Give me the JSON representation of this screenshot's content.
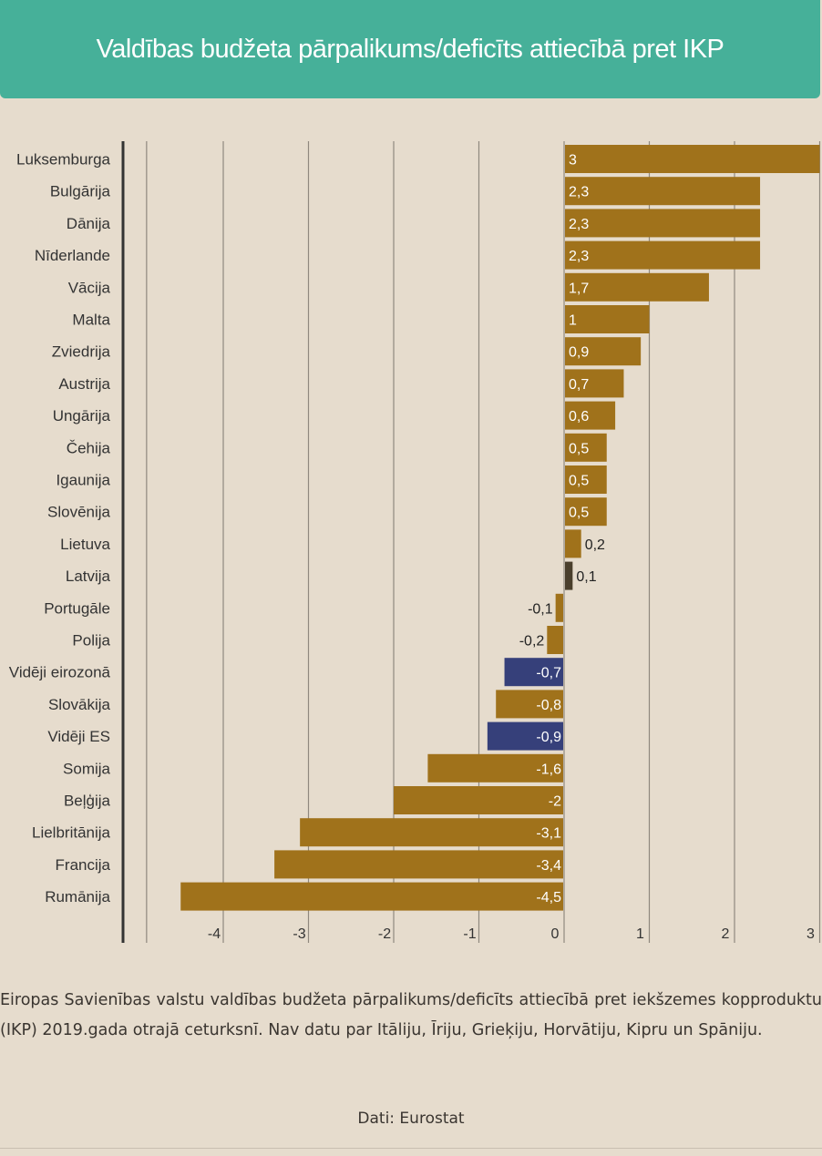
{
  "header": {
    "title": "Valdības budžeta pārpalikums/deficīts attiecībā pret IKP"
  },
  "chart_data": {
    "type": "bar",
    "orientation": "horizontal",
    "title": "Valdības budžeta pārpalikums/deficīts attiecībā pret IKP",
    "categories": [
      "Luksemburga",
      "Bulgārija",
      "Dānija",
      "Nīderlande",
      "Vācija",
      "Malta",
      "Zviedrija",
      "Austrija",
      "Ungārija",
      "Čehija",
      "Igaunija",
      "Slovēnija",
      "Lietuva",
      "Latvija",
      "Portugāle",
      "Polija",
      "Vidēji eirozonā",
      "Slovākija",
      "Vidēji ES",
      "Somija",
      "Beļģija",
      "Lielbritānija",
      "Francija",
      "Rumānija"
    ],
    "values": [
      3,
      2.3,
      2.3,
      2.3,
      1.7,
      1,
      0.9,
      0.7,
      0.6,
      0.5,
      0.5,
      0.5,
      0.2,
      0.1,
      -0.1,
      -0.2,
      -0.7,
      -0.8,
      -0.9,
      -1.6,
      -2,
      -3.1,
      -3.4,
      -4.5
    ],
    "value_labels": [
      "3",
      "2,3",
      "2,3",
      "2,3",
      "1,7",
      "1",
      "0,9",
      "0,7",
      "0,6",
      "0,5",
      "0,5",
      "0,5",
      "0,2",
      "0,1",
      "-0,1",
      "-0,2",
      "-0,7",
      "-0,8",
      "-0,9",
      "-1,6",
      "-2",
      "-3,1",
      "-3,4",
      "-4,5"
    ],
    "xlim": [
      -5,
      3
    ],
    "x_ticks": [
      -4,
      -3,
      -2,
      -1,
      0,
      1,
      2,
      3
    ],
    "grid": true,
    "colors": {
      "default": "#a0721b",
      "average": "#36407a",
      "latvia": "#4a3f2c"
    },
    "highlight": {
      "Vidēji eirozonā": "average",
      "Vidēji ES": "average",
      "Latvija": "latvia"
    }
  },
  "caption": "Eiropas Savienības valstu valdības budžeta pārpalikums/deficīts attiecībā pret iekšzemes kopproduktu (IKP) 2019.gada otrajā ceturksnī. Nav datu par Itāliju, Īriju, Grieķiju, Horvātiju, Kipru un Spāniju.",
  "source": "Dati: Eurostat"
}
